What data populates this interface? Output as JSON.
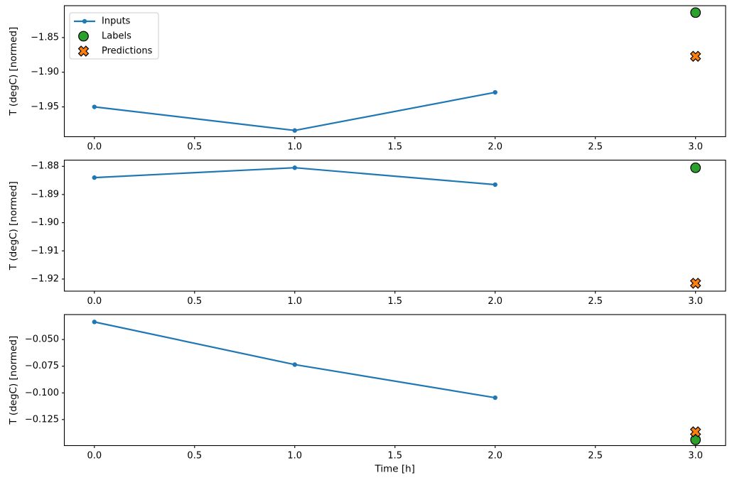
{
  "figure": {
    "background": "#ffffff",
    "xlabel": "Time [h]",
    "ylabel": "T (degC) [normed]",
    "colors": {
      "inputs": "#1f77b4",
      "labels": "#2ca02c",
      "predictions": "#ff7f0e",
      "marker_edge": "#000000",
      "spine": "#000000",
      "legend_border": "#cccccc"
    }
  },
  "legend": {
    "position": "upper-left",
    "entries": [
      "Inputs",
      "Labels",
      "Predictions"
    ]
  },
  "chart_data": [
    {
      "type": "line",
      "title": "",
      "xlabel": "",
      "ylabel": "T (degC) [normed]",
      "xlim": [
        -0.15,
        3.15
      ],
      "ylim": [
        -1.993,
        -1.804
      ],
      "grid": false,
      "show_legend": true,
      "xticks": {
        "values": [
          0,
          0.5,
          1,
          1.5,
          2,
          2.5,
          3
        ],
        "labels": [
          "0.0",
          "0.5",
          "1.0",
          "1.5",
          "2.0",
          "2.5",
          "3.0"
        ]
      },
      "yticks": {
        "values": [
          -1.85,
          -1.9,
          -1.95
        ],
        "labels": [
          "−1.85",
          "−1.90",
          "−1.95"
        ]
      },
      "series": [
        {
          "name": "Inputs",
          "kind": "line",
          "marker": "dot",
          "color": "#1f77b4",
          "x": [
            0,
            1,
            2
          ],
          "y": [
            -1.95,
            -1.984,
            -1.929
          ]
        },
        {
          "name": "Labels",
          "kind": "scatter",
          "marker": "circle",
          "color": "#2ca02c",
          "edge": "#000000",
          "x": [
            3
          ],
          "y": [
            -1.814
          ]
        },
        {
          "name": "Predictions",
          "kind": "scatter",
          "marker": "x",
          "color": "#ff7f0e",
          "edge": "#000000",
          "x": [
            3
          ],
          "y": [
            -1.877
          ]
        }
      ]
    },
    {
      "type": "line",
      "title": "",
      "xlabel": "",
      "ylabel": "T (degC) [normed]",
      "xlim": [
        -0.15,
        3.15
      ],
      "ylim": [
        -1.9243,
        -1.8778
      ],
      "grid": false,
      "show_legend": false,
      "xticks": {
        "values": [
          0,
          0.5,
          1,
          1.5,
          2,
          2.5,
          3
        ],
        "labels": [
          "0.0",
          "0.5",
          "1.0",
          "1.5",
          "2.0",
          "2.5",
          "3.0"
        ]
      },
      "yticks": {
        "values": [
          -1.88,
          -1.89,
          -1.9,
          -1.91,
          -1.92
        ],
        "labels": [
          "−1.88",
          "−1.89",
          "−1.90",
          "−1.91",
          "−1.92"
        ]
      },
      "series": [
        {
          "name": "Inputs",
          "kind": "line",
          "marker": "dot",
          "color": "#1f77b4",
          "x": [
            0,
            1,
            2
          ],
          "y": [
            -1.884,
            -1.8805,
            -1.8865
          ]
        },
        {
          "name": "Labels",
          "kind": "scatter",
          "marker": "circle",
          "color": "#2ca02c",
          "edge": "#000000",
          "x": [
            3
          ],
          "y": [
            -1.8805
          ]
        },
        {
          "name": "Predictions",
          "kind": "scatter",
          "marker": "x",
          "color": "#ff7f0e",
          "edge": "#000000",
          "x": [
            3
          ],
          "y": [
            -1.9215
          ]
        }
      ]
    },
    {
      "type": "line",
      "title": "",
      "xlabel": "Time [h]",
      "ylabel": "T (degC) [normed]",
      "xlim": [
        -0.15,
        3.15
      ],
      "ylim": [
        -0.1494,
        -0.0266
      ],
      "grid": false,
      "show_legend": false,
      "xticks": {
        "values": [
          0,
          0.5,
          1,
          1.5,
          2,
          2.5,
          3
        ],
        "labels": [
          "0.0",
          "0.5",
          "1.0",
          "1.5",
          "2.0",
          "2.5",
          "3.0"
        ]
      },
      "yticks": {
        "values": [
          -0.05,
          -0.075,
          -0.1,
          -0.125
        ],
        "labels": [
          "−0.050",
          "−0.075",
          "−0.100",
          "−0.125"
        ]
      },
      "series": [
        {
          "name": "Inputs",
          "kind": "line",
          "marker": "dot",
          "color": "#1f77b4",
          "x": [
            0,
            1,
            2
          ],
          "y": [
            -0.0335,
            -0.0735,
            -0.1045
          ]
        },
        {
          "name": "Labels",
          "kind": "scatter",
          "marker": "circle",
          "color": "#2ca02c",
          "edge": "#000000",
          "x": [
            3
          ],
          "y": [
            -0.144
          ]
        },
        {
          "name": "Predictions",
          "kind": "scatter",
          "marker": "x",
          "color": "#ff7f0e",
          "edge": "#000000",
          "x": [
            3
          ],
          "y": [
            -0.1365
          ]
        }
      ]
    }
  ]
}
